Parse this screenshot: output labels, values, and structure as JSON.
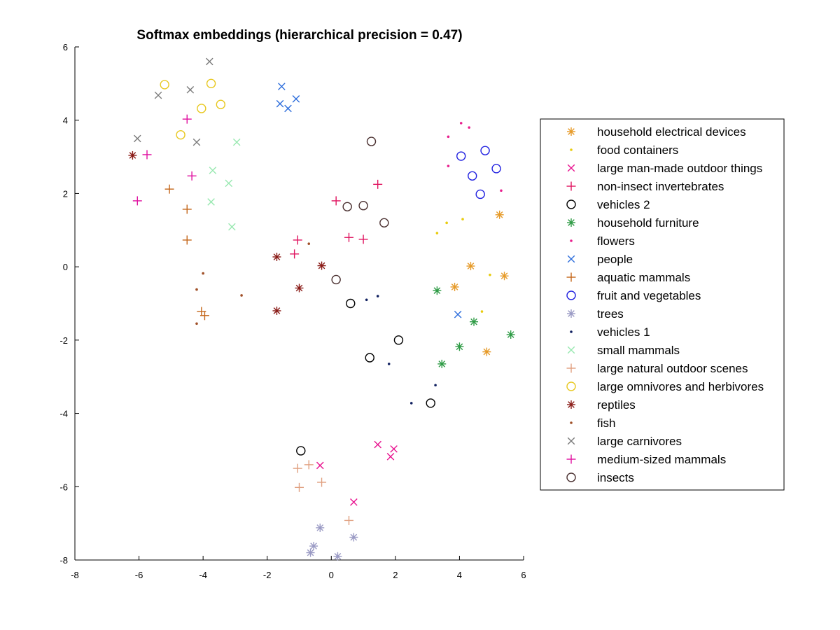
{
  "chart_data": {
    "type": "scatter",
    "title": "Softmax embeddings (hierarchical precision = 0.47)",
    "xlabel": "",
    "ylabel": "",
    "xlim": [
      -8,
      6
    ],
    "ylim": [
      -8,
      6
    ],
    "xticks": [
      "-8",
      "-6",
      "-4",
      "-2",
      "0",
      "2",
      "4",
      "6"
    ],
    "yticks": [
      "-8",
      "-6",
      "-4",
      "-2",
      "0",
      "2",
      "4",
      "6"
    ],
    "grid": false,
    "legend_position": "right",
    "series": [
      {
        "name": "household electrical devices",
        "marker": "asterisk",
        "color": "#E69A28",
        "points": [
          [
            5.25,
            1.42
          ],
          [
            4.35,
            0.02
          ],
          [
            5.4,
            -0.25
          ],
          [
            3.85,
            -0.55
          ],
          [
            4.85,
            -2.32
          ]
        ]
      },
      {
        "name": "food containers",
        "marker": "dot",
        "color": "#E8CC10",
        "points": [
          [
            3.3,
            0.92
          ],
          [
            3.6,
            1.2
          ],
          [
            4.1,
            1.3
          ],
          [
            4.95,
            -0.22
          ],
          [
            4.7,
            -1.22
          ]
        ]
      },
      {
        "name": "large man-made outdoor things",
        "marker": "x",
        "color": "#E8128F",
        "points": [
          [
            -0.35,
            -5.42
          ],
          [
            1.45,
            -4.85
          ],
          [
            1.95,
            -4.97
          ],
          [
            1.85,
            -5.18
          ],
          [
            0.7,
            -6.42
          ]
        ]
      },
      {
        "name": "non-insect invertebrates",
        "marker": "plus",
        "color": "#E01560",
        "points": [
          [
            1.45,
            2.25
          ],
          [
            0.15,
            1.8
          ],
          [
            0.55,
            0.8
          ],
          [
            1.0,
            0.75
          ],
          [
            -1.05,
            0.73
          ],
          [
            -1.15,
            0.35
          ]
        ]
      },
      {
        "name": "vehicles 2",
        "marker": "circle",
        "color": "#000000",
        "points": [
          [
            0.6,
            -1.0
          ],
          [
            2.1,
            -2.0
          ],
          [
            1.2,
            -2.48
          ],
          [
            3.1,
            -3.72
          ],
          [
            -0.95,
            -5.02
          ]
        ]
      },
      {
        "name": "household furniture",
        "marker": "asterisk",
        "color": "#2E9B45",
        "points": [
          [
            3.3,
            -0.65
          ],
          [
            4.45,
            -1.5
          ],
          [
            5.6,
            -1.85
          ],
          [
            4.0,
            -2.18
          ],
          [
            3.45,
            -2.65
          ]
        ]
      },
      {
        "name": "flowers",
        "marker": "dot",
        "color": "#E8208E",
        "points": [
          [
            4.05,
            3.92
          ],
          [
            4.3,
            3.8
          ],
          [
            3.65,
            3.55
          ],
          [
            3.65,
            2.75
          ],
          [
            5.3,
            2.08
          ]
        ]
      },
      {
        "name": "people",
        "marker": "x",
        "color": "#2E6EDC",
        "points": [
          [
            -1.55,
            4.92
          ],
          [
            -1.1,
            4.58
          ],
          [
            -1.6,
            4.45
          ],
          [
            -1.35,
            4.32
          ],
          [
            3.95,
            -1.3
          ]
        ]
      },
      {
        "name": "aquatic mammals",
        "marker": "plus",
        "color": "#C4661A",
        "points": [
          [
            -5.05,
            2.12
          ],
          [
            -4.5,
            1.57
          ],
          [
            -4.5,
            0.73
          ],
          [
            -4.05,
            -1.22
          ],
          [
            -3.95,
            -1.33
          ]
        ]
      },
      {
        "name": "fruit and vegetables",
        "marker": "circle",
        "color": "#2020E0",
        "points": [
          [
            4.8,
            3.17
          ],
          [
            4.05,
            3.02
          ],
          [
            5.15,
            2.68
          ],
          [
            4.4,
            2.48
          ],
          [
            4.65,
            1.98
          ]
        ]
      },
      {
        "name": "trees",
        "marker": "asterisk",
        "color": "#9A9AC4",
        "points": [
          [
            -0.35,
            -7.12
          ],
          [
            0.7,
            -7.38
          ],
          [
            -0.55,
            -7.62
          ],
          [
            -0.65,
            -7.8
          ],
          [
            0.2,
            -7.9
          ]
        ]
      },
      {
        "name": "vehicles 1",
        "marker": "dot",
        "color": "#102060",
        "points": [
          [
            1.1,
            -0.9
          ],
          [
            1.45,
            -0.8
          ],
          [
            1.8,
            -2.65
          ],
          [
            3.25,
            -3.23
          ],
          [
            2.5,
            -3.72
          ]
        ]
      },
      {
        "name": "small mammals",
        "marker": "x",
        "color": "#98E8B0",
        "points": [
          [
            -2.95,
            3.4
          ],
          [
            -3.7,
            2.63
          ],
          [
            -3.2,
            2.28
          ],
          [
            -3.75,
            1.77
          ],
          [
            -3.1,
            1.09
          ]
        ]
      },
      {
        "name": "large natural outdoor scenes",
        "marker": "plus",
        "color": "#E0A080",
        "points": [
          [
            -0.7,
            -5.4
          ],
          [
            -1.05,
            -5.5
          ],
          [
            -0.3,
            -5.88
          ],
          [
            -1.0,
            -6.02
          ],
          [
            0.55,
            -6.92
          ]
        ]
      },
      {
        "name": "large omnivores and herbivores",
        "marker": "circle",
        "color": "#E8C820",
        "points": [
          [
            -5.2,
            4.97
          ],
          [
            -3.75,
            5.0
          ],
          [
            -3.45,
            4.43
          ],
          [
            -4.05,
            4.32
          ],
          [
            -4.7,
            3.6
          ]
        ]
      },
      {
        "name": "reptiles",
        "marker": "asterisk",
        "color": "#8A1C18",
        "points": [
          [
            -6.2,
            3.04
          ],
          [
            -1.7,
            0.27
          ],
          [
            -0.3,
            0.03
          ],
          [
            -1.0,
            -0.58
          ],
          [
            -1.7,
            -1.2
          ]
        ]
      },
      {
        "name": "fish",
        "marker": "dot",
        "color": "#A05028",
        "points": [
          [
            -0.7,
            0.63
          ],
          [
            -4.0,
            -0.18
          ],
          [
            -4.2,
            -0.62
          ],
          [
            -2.8,
            -0.78
          ],
          [
            -4.2,
            -1.55
          ]
        ]
      },
      {
        "name": "large carnivores",
        "marker": "x",
        "color": "#7A7A7A",
        "points": [
          [
            -3.8,
            5.6
          ],
          [
            -4.4,
            4.83
          ],
          [
            -5.4,
            4.68
          ],
          [
            -6.05,
            3.5
          ],
          [
            -4.2,
            3.4
          ]
        ]
      },
      {
        "name": "medium-sized mammals",
        "marker": "plus",
        "color": "#E010A0",
        "points": [
          [
            -4.5,
            4.03
          ],
          [
            -5.75,
            3.06
          ],
          [
            -4.35,
            2.48
          ],
          [
            -6.05,
            1.8
          ]
        ]
      },
      {
        "name": "insects",
        "marker": "circle",
        "color": "#4A3030",
        "points": [
          [
            1.25,
            3.42
          ],
          [
            0.5,
            1.64
          ],
          [
            1.0,
            1.67
          ],
          [
            1.65,
            1.2
          ],
          [
            0.15,
            -0.35
          ]
        ]
      }
    ]
  }
}
